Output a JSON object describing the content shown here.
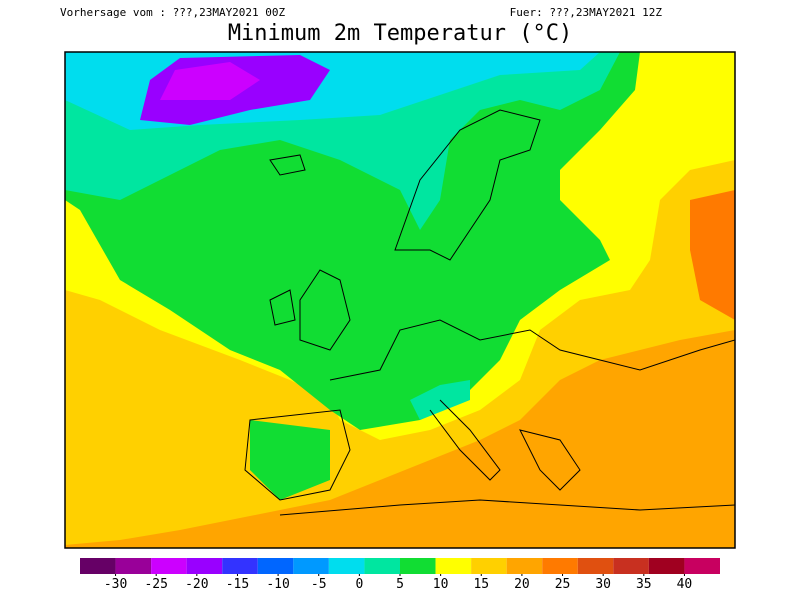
{
  "header": {
    "left": "Vorhersage vom : ???,23MAY2021 00Z",
    "right": "Fuer: ???,23MAY2021 12Z",
    "title": "Minimum 2m Temperatur (°C)"
  },
  "colorbar": {
    "colors": [
      "#660066",
      "#990099",
      "#cc00ff",
      "#9900ff",
      "#3333ff",
      "#0066ff",
      "#0099ff",
      "#00ddee",
      "#00e6a0",
      "#11dd33",
      "#ffff00",
      "#ffd000",
      "#ffa500",
      "#ff7a00",
      "#e05010",
      "#c83020",
      "#a00020",
      "#c80060"
    ],
    "ticks": [
      -30,
      -25,
      -20,
      -15,
      -10,
      -5,
      0,
      5,
      10,
      15,
      20,
      25,
      30,
      35,
      40
    ]
  }
}
